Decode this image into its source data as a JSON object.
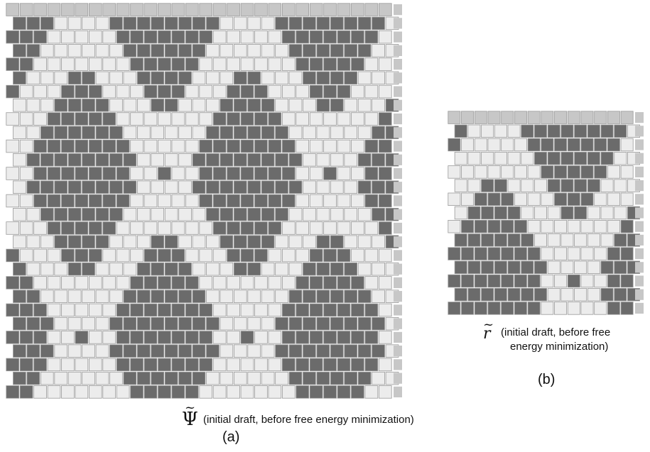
{
  "panel_a": {
    "symbol": "Ψ",
    "tilde": "~",
    "caption": "(initial draft, before free energy minimization)",
    "label": "(a)",
    "grid": {
      "rows": 29,
      "cols": 28
    }
  },
  "panel_b": {
    "symbol": "r",
    "tilde": "~",
    "caption_line1": "(initial draft, before free",
    "caption_line2": "energy minimization)",
    "label": "(b)",
    "grid": {
      "rows": 15,
      "cols": 14
    }
  },
  "colors": {
    "dark_brick": "#6b6b6b",
    "light_brick": "#ececec",
    "brick_border": "#9a9a9a",
    "edge_marker": "#c7c7c7"
  }
}
